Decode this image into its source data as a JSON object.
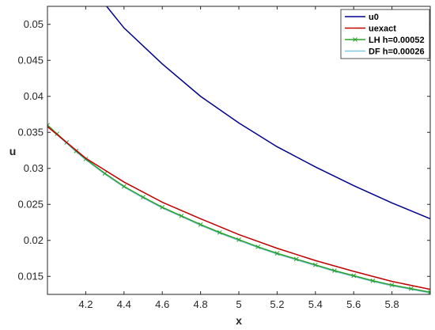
{
  "chart_data": {
    "type": "line",
    "title": "",
    "xlabel": "x",
    "ylabel": "u",
    "xlim": [
      4.0,
      6.0
    ],
    "ylim": [
      0.0125,
      0.0525
    ],
    "grid": false,
    "legend_position": "top-right",
    "x_ticks": [
      "4.2",
      "4.4",
      "4.6",
      "4.8",
      "5",
      "5.2",
      "5.4",
      "5.6",
      "5.8"
    ],
    "y_ticks": [
      "0.015",
      "0.02",
      "0.025",
      "0.03",
      "0.035",
      "0.04",
      "0.045",
      "0.05"
    ],
    "series": [
      {
        "name": "u0",
        "color": "#00008B",
        "marker": "none",
        "x": [
          4.3,
          4.4,
          4.6,
          4.8,
          5.0,
          5.2,
          5.4,
          5.6,
          5.8,
          6.0
        ],
        "y": [
          0.0528,
          0.0495,
          0.0445,
          0.04,
          0.0363,
          0.033,
          0.0302,
          0.0276,
          0.0252,
          0.023
        ]
      },
      {
        "name": "uexact",
        "color": "#C00000",
        "marker": "none",
        "x": [
          4.0,
          4.2,
          4.4,
          4.6,
          4.8,
          5.0,
          5.2,
          5.4,
          5.6,
          5.8,
          6.0
        ],
        "y": [
          0.0358,
          0.0314,
          0.0281,
          0.0253,
          0.023,
          0.0208,
          0.0189,
          0.0172,
          0.0157,
          0.0143,
          0.0132
        ]
      },
      {
        "name": "LH h=0.00052",
        "color": "#2ca02c",
        "marker": "x",
        "x": [
          4.0,
          4.05,
          4.1,
          4.15,
          4.2,
          4.3,
          4.4,
          4.5,
          4.6,
          4.7,
          4.8,
          4.9,
          5.0,
          5.1,
          5.2,
          5.3,
          5.4,
          5.5,
          5.6,
          5.7,
          5.8,
          5.9,
          6.0
        ],
        "y": [
          0.036,
          0.0348,
          0.0336,
          0.0324,
          0.0313,
          0.0293,
          0.0275,
          0.026,
          0.0246,
          0.0234,
          0.0222,
          0.0211,
          0.0201,
          0.0191,
          0.0182,
          0.0174,
          0.0166,
          0.0158,
          0.0151,
          0.0144,
          0.0138,
          0.0133,
          0.0128
        ]
      },
      {
        "name": "DF h=0.00026",
        "color": "#7EC8E3",
        "marker": "none",
        "x": [
          4.0,
          4.05,
          4.1,
          4.15,
          4.2,
          4.3,
          4.4,
          4.5,
          4.6,
          4.7,
          4.8,
          4.9,
          5.0,
          5.1,
          5.2,
          5.3,
          5.4,
          5.5,
          5.6,
          5.7,
          5.8,
          5.9,
          6.0
        ],
        "y": [
          0.036,
          0.0347,
          0.0335,
          0.0323,
          0.0312,
          0.0292,
          0.0274,
          0.0259,
          0.0245,
          0.0233,
          0.0221,
          0.021,
          0.02,
          0.019,
          0.0181,
          0.0173,
          0.0165,
          0.0157,
          0.015,
          0.0143,
          0.0137,
          0.0132,
          0.0127
        ]
      }
    ]
  }
}
